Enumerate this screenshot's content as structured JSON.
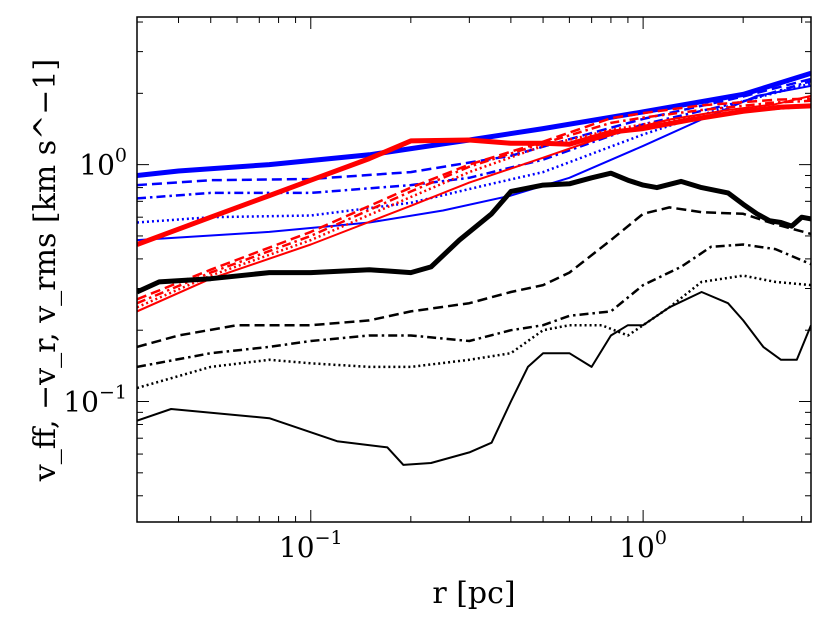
{
  "chart_data": {
    "type": "line",
    "title": "",
    "xlabel": "r [pc]",
    "ylabel": "v_ff, −v_r, v_rms [km s^−1]",
    "xscale": "log",
    "yscale": "log",
    "xlim": [
      0.03,
      3.2
    ],
    "ylim": [
      0.031,
      4.2
    ],
    "x_ticks": [
      {
        "value": 0.1,
        "base": "10",
        "exp": "−1"
      },
      {
        "value": 1.0,
        "base": "10",
        "exp": "0"
      }
    ],
    "y_ticks": [
      {
        "value": 0.1,
        "base": "10",
        "exp": "−1"
      },
      {
        "value": 1.0,
        "base": "10",
        "exp": "0"
      }
    ],
    "colors": {
      "blue": "#0000ff",
      "red": "#ff0000",
      "black": "#000000"
    },
    "series": [
      {
        "name": "blue-thick-solid",
        "color": "#0000ff",
        "style": "solid",
        "width": "thick",
        "points": [
          [
            0.03,
            0.9
          ],
          [
            0.04,
            0.94
          ],
          [
            0.075,
            1.0
          ],
          [
            0.15,
            1.1
          ],
          [
            0.3,
            1.27
          ],
          [
            0.5,
            1.42
          ],
          [
            1.0,
            1.67
          ],
          [
            2.0,
            1.98
          ],
          [
            3.2,
            2.43
          ]
        ]
      },
      {
        "name": "blue-dashed",
        "color": "#0000ff",
        "style": "dashed",
        "width": "normal",
        "points": [
          [
            0.03,
            0.82
          ],
          [
            0.05,
            0.86
          ],
          [
            0.1,
            0.87
          ],
          [
            0.2,
            0.93
          ],
          [
            0.4,
            1.09
          ],
          [
            0.6,
            1.28
          ],
          [
            1.0,
            1.56
          ],
          [
            2.0,
            1.94
          ],
          [
            3.2,
            2.3
          ]
        ]
      },
      {
        "name": "blue-dashdot",
        "color": "#0000ff",
        "style": "dashdot",
        "width": "normal",
        "points": [
          [
            0.03,
            0.72
          ],
          [
            0.05,
            0.76
          ],
          [
            0.1,
            0.76
          ],
          [
            0.2,
            0.82
          ],
          [
            0.3,
            0.88
          ],
          [
            0.5,
            1.05
          ],
          [
            1.0,
            1.48
          ],
          [
            2.0,
            1.85
          ],
          [
            3.2,
            2.25
          ]
        ]
      },
      {
        "name": "blue-dotted",
        "color": "#0000ff",
        "style": "dotted",
        "width": "normal",
        "points": [
          [
            0.03,
            0.57
          ],
          [
            0.05,
            0.6
          ],
          [
            0.1,
            0.61
          ],
          [
            0.2,
            0.69
          ],
          [
            0.35,
            0.83
          ],
          [
            0.5,
            0.93
          ],
          [
            1.0,
            1.34
          ],
          [
            2.0,
            1.85
          ],
          [
            3.2,
            2.2
          ]
        ]
      },
      {
        "name": "blue-thin-solid",
        "color": "#0000ff",
        "style": "solid",
        "width": "thin",
        "points": [
          [
            0.03,
            0.48
          ],
          [
            0.075,
            0.52
          ],
          [
            0.15,
            0.57
          ],
          [
            0.25,
            0.64
          ],
          [
            0.4,
            0.74
          ],
          [
            0.6,
            0.88
          ],
          [
            1.0,
            1.2
          ],
          [
            1.5,
            1.55
          ],
          [
            2.2,
            1.95
          ],
          [
            3.2,
            2.15
          ]
        ]
      },
      {
        "name": "red-thick-solid",
        "color": "#ff0000",
        "style": "solid",
        "width": "thick",
        "points": [
          [
            0.03,
            0.46
          ],
          [
            0.05,
            0.6
          ],
          [
            0.075,
            0.74
          ],
          [
            0.1,
            0.86
          ],
          [
            0.15,
            1.06
          ],
          [
            0.2,
            1.26
          ],
          [
            0.3,
            1.27
          ],
          [
            0.4,
            1.23
          ],
          [
            0.5,
            1.23
          ],
          [
            0.6,
            1.22
          ],
          [
            0.8,
            1.37
          ],
          [
            1.0,
            1.42
          ],
          [
            1.4,
            1.55
          ],
          [
            2.0,
            1.68
          ],
          [
            2.6,
            1.75
          ],
          [
            3.2,
            1.77
          ]
        ]
      },
      {
        "name": "red-dashed",
        "color": "#ff0000",
        "style": "dashed",
        "width": "normal",
        "points": [
          [
            0.03,
            0.27
          ],
          [
            0.05,
            0.36
          ],
          [
            0.1,
            0.52
          ],
          [
            0.2,
            0.8
          ],
          [
            0.3,
            1.0
          ],
          [
            0.5,
            1.25
          ],
          [
            0.8,
            1.57
          ],
          [
            1.0,
            1.65
          ],
          [
            1.5,
            1.78
          ],
          [
            2.5,
            1.88
          ],
          [
            3.2,
            1.9
          ]
        ]
      },
      {
        "name": "red-dashdot",
        "color": "#ff0000",
        "style": "dashdot",
        "width": "normal",
        "points": [
          [
            0.03,
            0.26
          ],
          [
            0.05,
            0.35
          ],
          [
            0.1,
            0.5
          ],
          [
            0.2,
            0.77
          ],
          [
            0.3,
            0.98
          ],
          [
            0.5,
            1.23
          ],
          [
            0.8,
            1.5
          ],
          [
            1.0,
            1.58
          ],
          [
            1.5,
            1.7
          ],
          [
            2.5,
            1.83
          ],
          [
            3.2,
            1.86
          ]
        ]
      },
      {
        "name": "red-dotted",
        "color": "#ff0000",
        "style": "dotted",
        "width": "normal",
        "points": [
          [
            0.03,
            0.25
          ],
          [
            0.05,
            0.34
          ],
          [
            0.1,
            0.48
          ],
          [
            0.2,
            0.73
          ],
          [
            0.3,
            0.93
          ],
          [
            0.5,
            1.2
          ],
          [
            0.8,
            1.4
          ],
          [
            1.0,
            1.48
          ],
          [
            1.5,
            1.6
          ],
          [
            2.5,
            1.72
          ],
          [
            3.2,
            1.76
          ]
        ]
      },
      {
        "name": "red-thin-solid",
        "color": "#ff0000",
        "style": "solid",
        "width": "thin",
        "points": [
          [
            0.03,
            0.24
          ],
          [
            0.05,
            0.33
          ],
          [
            0.1,
            0.46
          ],
          [
            0.2,
            0.67
          ],
          [
            0.3,
            0.84
          ],
          [
            0.5,
            1.07
          ],
          [
            0.7,
            1.26
          ],
          [
            0.9,
            1.4
          ],
          [
            1.2,
            1.55
          ],
          [
            1.8,
            1.7
          ],
          [
            2.5,
            1.8
          ],
          [
            3.2,
            1.95
          ]
        ]
      },
      {
        "name": "black-thick-solid",
        "color": "#000000",
        "style": "solid",
        "width": "thick",
        "points": [
          [
            0.03,
            0.29
          ],
          [
            0.035,
            0.32
          ],
          [
            0.05,
            0.33
          ],
          [
            0.075,
            0.35
          ],
          [
            0.1,
            0.35
          ],
          [
            0.15,
            0.36
          ],
          [
            0.2,
            0.35
          ],
          [
            0.23,
            0.37
          ],
          [
            0.28,
            0.48
          ],
          [
            0.35,
            0.62
          ],
          [
            0.4,
            0.77
          ],
          [
            0.5,
            0.82
          ],
          [
            0.6,
            0.83
          ],
          [
            0.7,
            0.88
          ],
          [
            0.8,
            0.92
          ],
          [
            0.9,
            0.86
          ],
          [
            1.0,
            0.82
          ],
          [
            1.1,
            0.8
          ],
          [
            1.3,
            0.85
          ],
          [
            1.5,
            0.8
          ],
          [
            1.8,
            0.76
          ],
          [
            2.0,
            0.68
          ],
          [
            2.2,
            0.62
          ],
          [
            2.4,
            0.58
          ],
          [
            2.6,
            0.57
          ],
          [
            2.8,
            0.55
          ],
          [
            3.0,
            0.6
          ],
          [
            3.2,
            0.59
          ]
        ]
      },
      {
        "name": "black-dashed",
        "color": "#000000",
        "style": "dashed",
        "width": "normal",
        "points": [
          [
            0.03,
            0.17
          ],
          [
            0.04,
            0.19
          ],
          [
            0.06,
            0.21
          ],
          [
            0.1,
            0.21
          ],
          [
            0.15,
            0.22
          ],
          [
            0.2,
            0.24
          ],
          [
            0.3,
            0.26
          ],
          [
            0.4,
            0.29
          ],
          [
            0.5,
            0.31
          ],
          [
            0.6,
            0.35
          ],
          [
            0.8,
            0.48
          ],
          [
            1.0,
            0.62
          ],
          [
            1.2,
            0.66
          ],
          [
            1.5,
            0.63
          ],
          [
            2.0,
            0.62
          ],
          [
            2.5,
            0.56
          ],
          [
            3.2,
            0.51
          ]
        ]
      },
      {
        "name": "black-dashdot",
        "color": "#000000",
        "style": "dashdot",
        "width": "normal",
        "points": [
          [
            0.03,
            0.14
          ],
          [
            0.05,
            0.16
          ],
          [
            0.075,
            0.17
          ],
          [
            0.1,
            0.18
          ],
          [
            0.15,
            0.19
          ],
          [
            0.2,
            0.19
          ],
          [
            0.3,
            0.18
          ],
          [
            0.4,
            0.2
          ],
          [
            0.5,
            0.21
          ],
          [
            0.6,
            0.23
          ],
          [
            0.8,
            0.24
          ],
          [
            1.0,
            0.31
          ],
          [
            1.3,
            0.37
          ],
          [
            1.6,
            0.45
          ],
          [
            2.0,
            0.46
          ],
          [
            2.5,
            0.44
          ],
          [
            3.2,
            0.38
          ]
        ]
      },
      {
        "name": "black-dotted",
        "color": "#000000",
        "style": "dotted",
        "width": "normal",
        "points": [
          [
            0.03,
            0.114
          ],
          [
            0.05,
            0.14
          ],
          [
            0.075,
            0.15
          ],
          [
            0.1,
            0.145
          ],
          [
            0.15,
            0.14
          ],
          [
            0.2,
            0.14
          ],
          [
            0.3,
            0.15
          ],
          [
            0.4,
            0.16
          ],
          [
            0.5,
            0.2
          ],
          [
            0.6,
            0.21
          ],
          [
            0.75,
            0.21
          ],
          [
            0.9,
            0.19
          ],
          [
            1.0,
            0.21
          ],
          [
            1.2,
            0.25
          ],
          [
            1.5,
            0.32
          ],
          [
            2.0,
            0.34
          ],
          [
            2.5,
            0.32
          ],
          [
            3.2,
            0.31
          ]
        ]
      },
      {
        "name": "black-thin-solid",
        "color": "#000000",
        "style": "solid",
        "width": "thin",
        "points": [
          [
            0.03,
            0.083
          ],
          [
            0.038,
            0.093
          ],
          [
            0.075,
            0.085
          ],
          [
            0.12,
            0.068
          ],
          [
            0.17,
            0.064
          ],
          [
            0.19,
            0.054
          ],
          [
            0.23,
            0.055
          ],
          [
            0.3,
            0.061
          ],
          [
            0.35,
            0.067
          ],
          [
            0.4,
            0.1
          ],
          [
            0.45,
            0.14
          ],
          [
            0.5,
            0.16
          ],
          [
            0.6,
            0.16
          ],
          [
            0.7,
            0.14
          ],
          [
            0.8,
            0.19
          ],
          [
            0.9,
            0.21
          ],
          [
            1.0,
            0.21
          ],
          [
            1.2,
            0.25
          ],
          [
            1.5,
            0.29
          ],
          [
            1.8,
            0.26
          ],
          [
            2.0,
            0.22
          ],
          [
            2.3,
            0.17
          ],
          [
            2.6,
            0.15
          ],
          [
            2.9,
            0.15
          ],
          [
            3.2,
            0.21
          ]
        ]
      }
    ]
  }
}
